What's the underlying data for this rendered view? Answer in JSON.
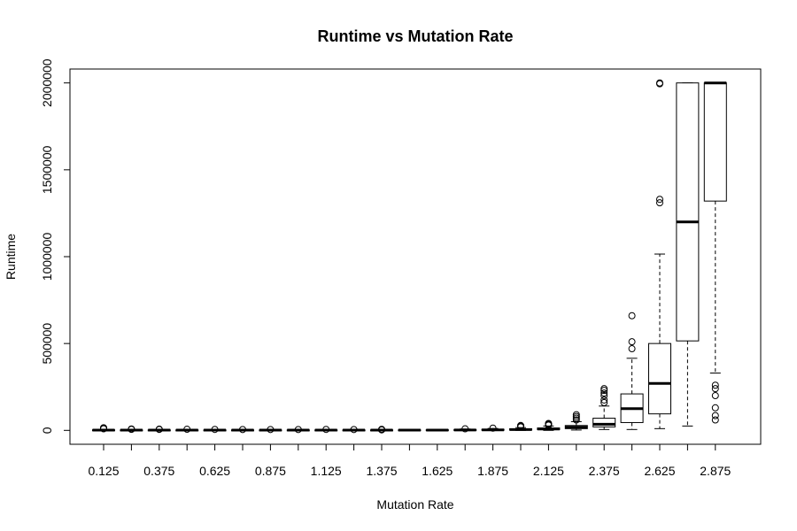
{
  "chart_data": {
    "type": "boxplot",
    "title": "Runtime vs Mutation Rate",
    "xlabel": "Mutation Rate",
    "ylabel": "Runtime",
    "ylim": [
      -80000,
      2080000
    ],
    "y_ticks": [
      0,
      500000,
      1000000,
      1500000,
      2000000
    ],
    "y_tick_labels": [
      "0",
      "500000",
      "1000000",
      "1500000",
      "2000000"
    ],
    "x_tick_labels_shown": [
      "0.125",
      "0.375",
      "0.625",
      "0.875",
      "1.125",
      "1.375",
      "1.625",
      "1.875",
      "2.125",
      "2.375",
      "2.625",
      "2.875"
    ],
    "categories": [
      "0.125",
      "0.25",
      "0.375",
      "0.5",
      "0.625",
      "0.75",
      "0.875",
      "1",
      "1.125",
      "1.25",
      "1.375",
      "1.5",
      "1.625",
      "1.75",
      "1.875",
      "2",
      "2.125",
      "2.25",
      "2.375",
      "2.5",
      "2.625",
      "2.75",
      "2.875"
    ],
    "boxes": [
      {
        "x": "0.125",
        "min": 0,
        "q1": 500,
        "median": 1500,
        "q3": 3000,
        "max": 6000,
        "outliers": [
          12000,
          15000,
          9000
        ]
      },
      {
        "x": "0.25",
        "min": 0,
        "q1": 400,
        "median": 1200,
        "q3": 2500,
        "max": 5000,
        "outliers": [
          8000,
          6000
        ]
      },
      {
        "x": "0.375",
        "min": 0,
        "q1": 400,
        "median": 1200,
        "q3": 2500,
        "max": 5000,
        "outliers": [
          7000,
          5500
        ]
      },
      {
        "x": "0.5",
        "min": 0,
        "q1": 400,
        "median": 1200,
        "q3": 2500,
        "max": 5000,
        "outliers": [
          6500
        ]
      },
      {
        "x": "0.625",
        "min": 0,
        "q1": 400,
        "median": 1200,
        "q3": 2500,
        "max": 4500,
        "outliers": [
          5500
        ]
      },
      {
        "x": "0.75",
        "min": 0,
        "q1": 400,
        "median": 1200,
        "q3": 2500,
        "max": 4000,
        "outliers": [
          5000
        ]
      },
      {
        "x": "0.875",
        "min": 0,
        "q1": 400,
        "median": 1200,
        "q3": 2500,
        "max": 4000,
        "outliers": [
          5000
        ]
      },
      {
        "x": "1",
        "min": 0,
        "q1": 400,
        "median": 1200,
        "q3": 2500,
        "max": 4000,
        "outliers": [
          5000
        ]
      },
      {
        "x": "1.125",
        "min": 0,
        "q1": 400,
        "median": 1200,
        "q3": 2500,
        "max": 4000,
        "outliers": [
          5500
        ]
      },
      {
        "x": "1.25",
        "min": 0,
        "q1": 400,
        "median": 1200,
        "q3": 2500,
        "max": 4000,
        "outliers": [
          5000
        ]
      },
      {
        "x": "1.375",
        "min": 0,
        "q1": 400,
        "median": 1200,
        "q3": 2500,
        "max": 4500,
        "outliers": [
          6000,
          3000
        ]
      },
      {
        "x": "1.5",
        "min": 0,
        "q1": 500,
        "median": 1500,
        "q3": 3000,
        "max": 5000,
        "outliers": []
      },
      {
        "x": "1.625",
        "min": 0,
        "q1": 600,
        "median": 1800,
        "q3": 3500,
        "max": 6000,
        "outliers": []
      },
      {
        "x": "1.75",
        "min": 0,
        "q1": 700,
        "median": 2200,
        "q3": 4500,
        "max": 8000,
        "outliers": [
          9000
        ]
      },
      {
        "x": "1.875",
        "min": 0,
        "q1": 1000,
        "median": 3000,
        "q3": 6000,
        "max": 11000,
        "outliers": [
          13000
        ]
      },
      {
        "x": "2",
        "min": 0,
        "q1": 2000,
        "median": 5000,
        "q3": 9000,
        "max": 16000,
        "outliers": [
          20000,
          25000,
          28000
        ]
      },
      {
        "x": "2.125",
        "min": 0,
        "q1": 4000,
        "median": 8000,
        "q3": 14000,
        "max": 25000,
        "outliers": [
          30000,
          35000,
          40000
        ]
      },
      {
        "x": "2.25",
        "min": 2000,
        "q1": 10000,
        "median": 18000,
        "q3": 28000,
        "max": 50000,
        "outliers": [
          60000,
          70000,
          80000,
          90000
        ]
      },
      {
        "x": "2.375",
        "min": 5000,
        "q1": 20000,
        "median": 35000,
        "q3": 70000,
        "max": 140000,
        "outliers": [
          160000,
          175000,
          200000,
          215000,
          230000,
          240000
        ]
      },
      {
        "x": "2.5",
        "min": 5000,
        "q1": 45000,
        "median": 125000,
        "q3": 210000,
        "max": 415000,
        "outliers": [
          470000,
          510000,
          660000
        ]
      },
      {
        "x": "2.625",
        "min": 10000,
        "q1": 95000,
        "median": 270000,
        "q3": 500000,
        "max": 1015000,
        "outliers": [
          1310000,
          1330000,
          1995000,
          2000000
        ]
      },
      {
        "x": "2.75",
        "min": 25000,
        "q1": 515000,
        "median": 1200000,
        "q3": 2000000,
        "max": 2000000,
        "outliers": []
      },
      {
        "x": "2.875",
        "min": 330000,
        "q1": 1320000,
        "median": 2000000,
        "q3": 2000000,
        "max": 2000000,
        "outliers": [
          260000,
          240000,
          200000,
          130000,
          85000,
          60000
        ]
      }
    ],
    "grid": false,
    "legend": "none"
  }
}
